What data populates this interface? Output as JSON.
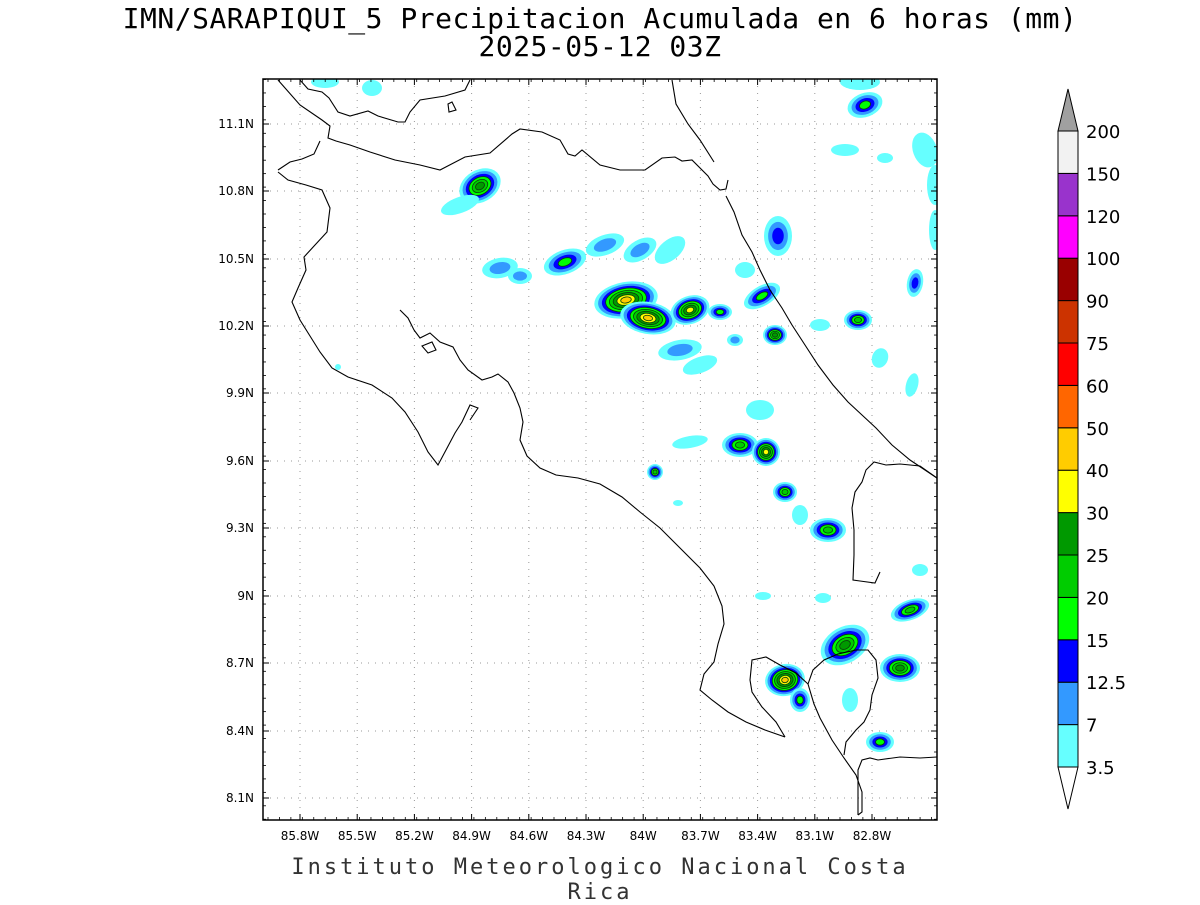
{
  "title": {
    "line1": "IMN/SARAPIQUI_5 Precipitacion Acumulada en 6 horas (mm)",
    "line2": "2025-05-12 03Z"
  },
  "footer": "Instituto Meteorologico Nacional Costa Rica",
  "axes": {
    "x_ticks": [
      "85.8W",
      "85.5W",
      "85.2W",
      "84.9W",
      "84.6W",
      "84.3W",
      "84W",
      "83.7W",
      "83.4W",
      "83.1W",
      "82.8W"
    ],
    "y_ticks": [
      "11.1N",
      "10.8N",
      "10.5N",
      "10.2N",
      "9.9N",
      "9.6N",
      "9.3N",
      "9N",
      "8.7N",
      "8.4N",
      "8.1N"
    ],
    "grid": "dotted"
  },
  "colorbar": {
    "levels": [
      "3.5",
      "7",
      "12.5",
      "15",
      "20",
      "25",
      "30",
      "40",
      "50",
      "60",
      "75",
      "90",
      "100",
      "120",
      "150",
      "200"
    ],
    "colors": [
      "#66ffff",
      "#3399ff",
      "#0000ff",
      "#00ff00",
      "#00cc00",
      "#009900",
      "#ffff00",
      "#ffcc00",
      "#ff6600",
      "#ff0000",
      "#cc3300",
      "#990000",
      "#ff00ff",
      "#9933cc",
      "#f2f2f2",
      "#a0a0a0"
    ]
  }
}
